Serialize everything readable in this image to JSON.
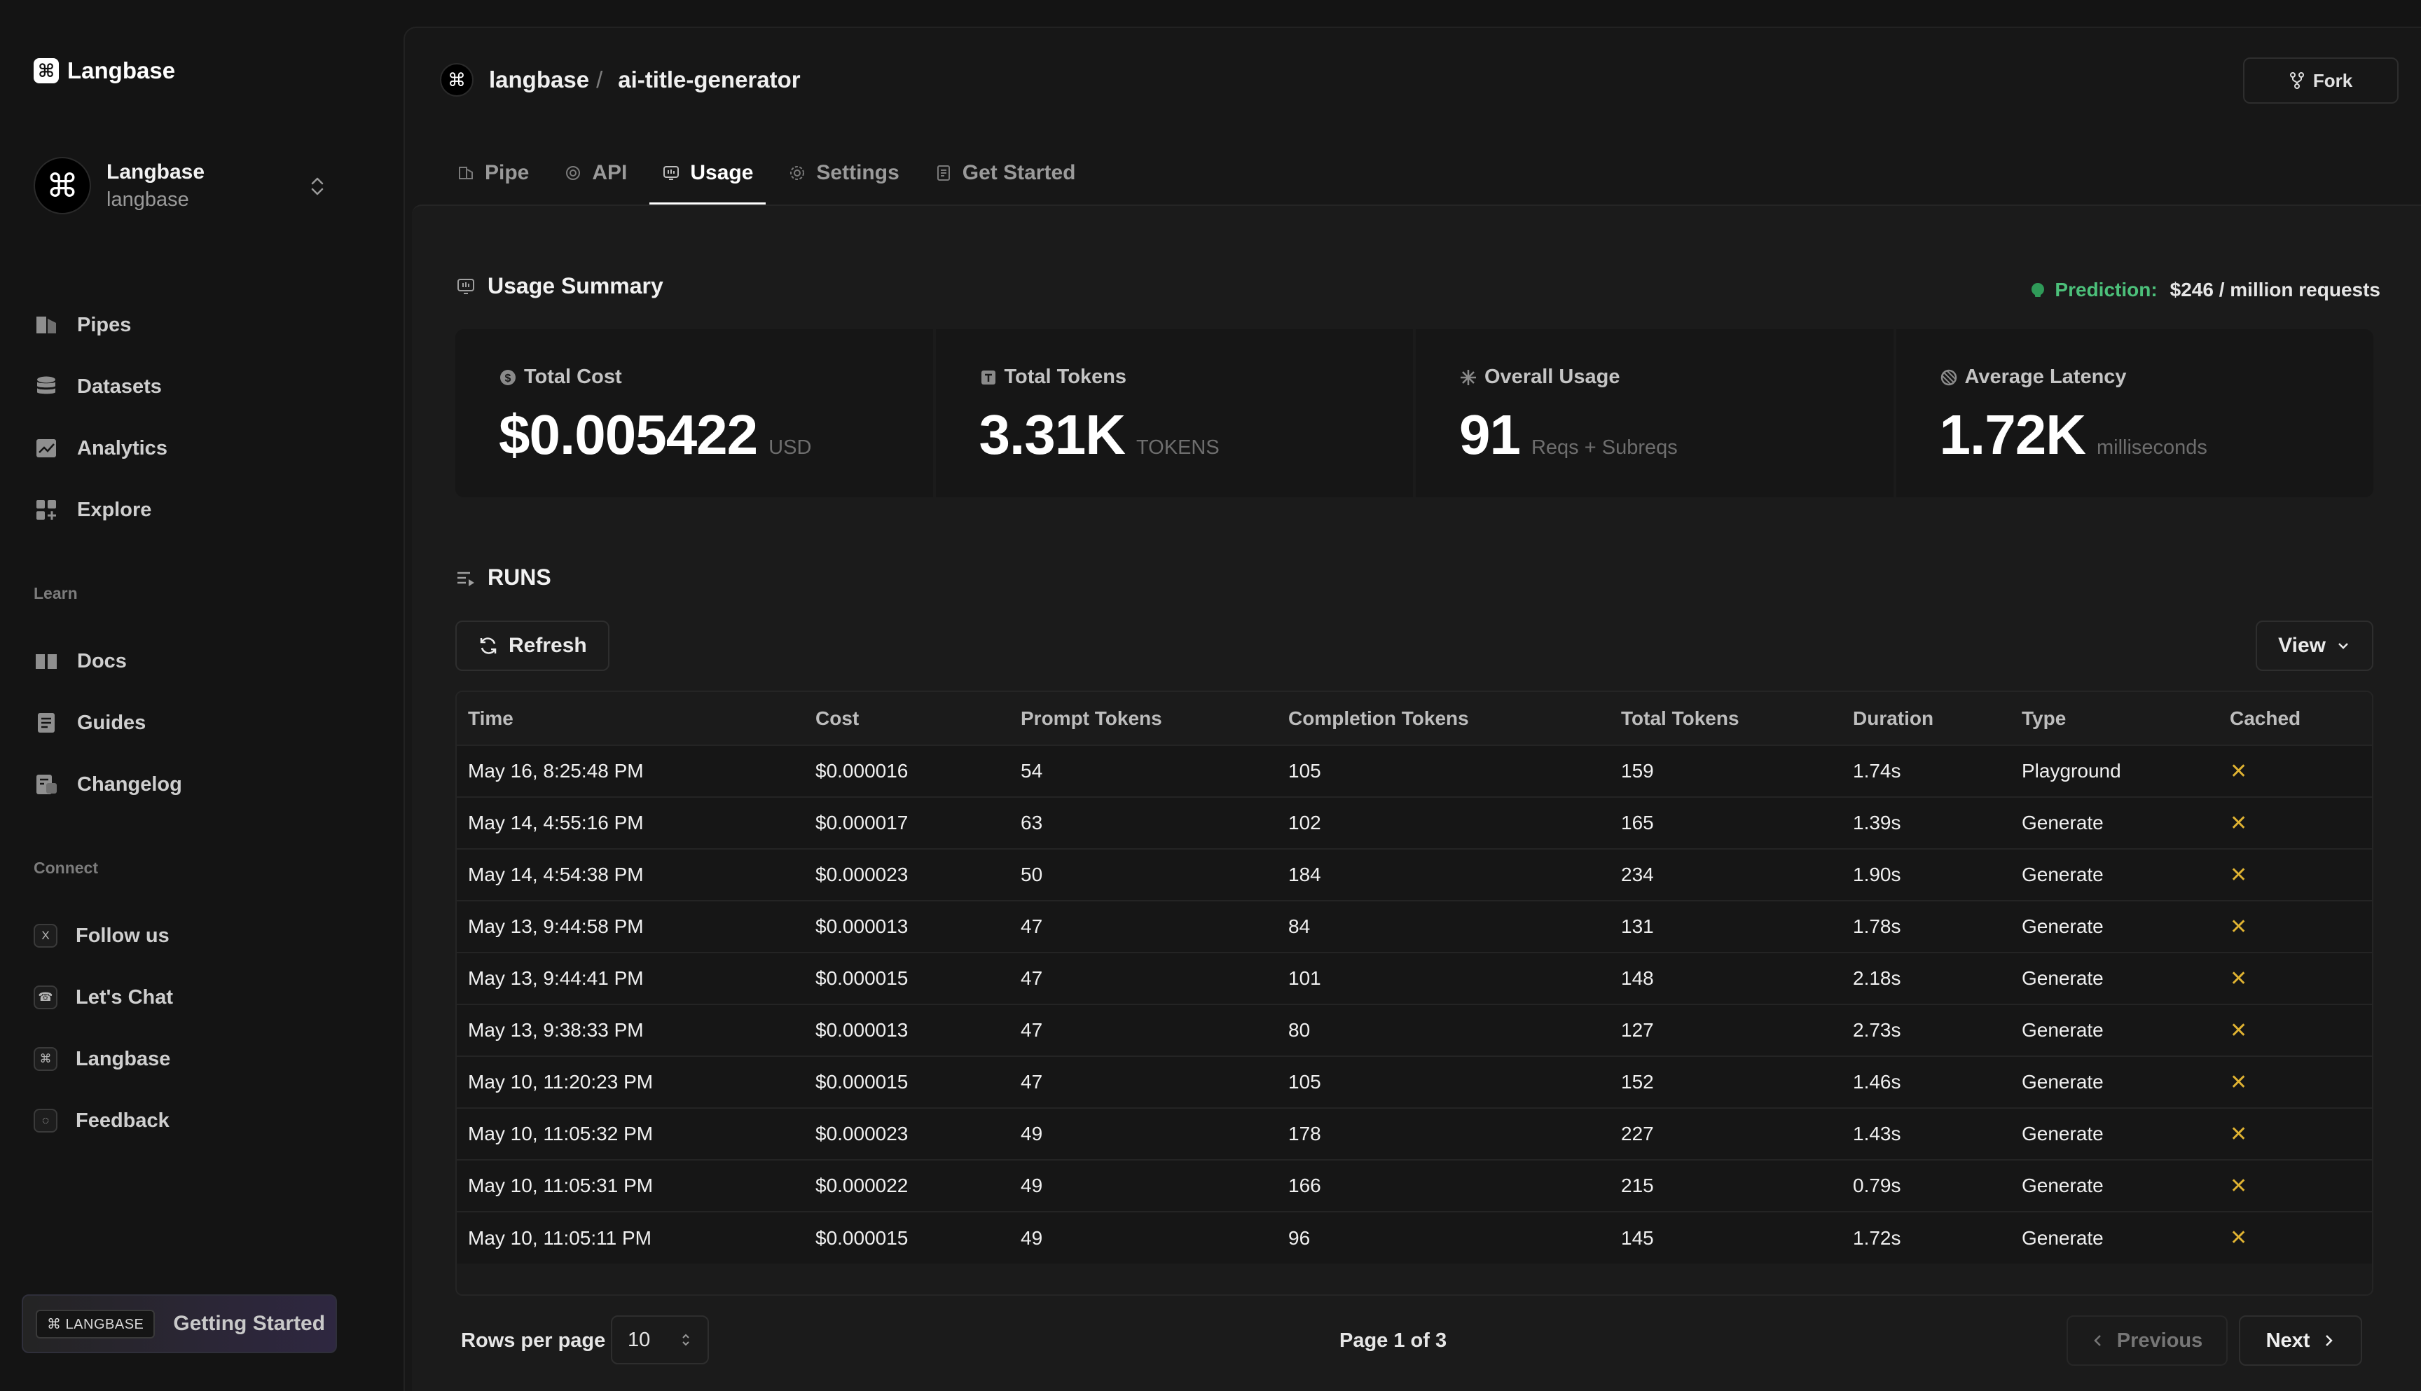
{
  "sidebar": {
    "brand": {
      "mark": "⌘",
      "name": "Langbase"
    },
    "org": {
      "avatar": "⌘",
      "name": "Langbase",
      "handle": "langbase"
    },
    "nav": [
      {
        "label": "Pipes",
        "icon": "pipes-icon"
      },
      {
        "label": "Datasets",
        "icon": "database-icon"
      },
      {
        "label": "Analytics",
        "icon": "analytics-icon"
      },
      {
        "label": "Explore",
        "icon": "explore-icon"
      }
    ],
    "learn_heading": "Learn",
    "learn": [
      {
        "label": "Docs",
        "icon": "book-icon"
      },
      {
        "label": "Guides",
        "icon": "guide-icon"
      },
      {
        "label": "Changelog",
        "icon": "changelog-icon"
      }
    ],
    "connect_heading": "Connect",
    "connect": [
      {
        "label": "Follow us",
        "glyph": "X",
        "icon": "x-icon"
      },
      {
        "label": "Let's Chat",
        "glyph": "☎",
        "icon": "chat-icon"
      },
      {
        "label": "Langbase",
        "glyph": "⌘",
        "icon": "langbase-icon"
      },
      {
        "label": "Feedback",
        "glyph": "◌",
        "icon": "feedback-icon"
      }
    ],
    "getting_started": {
      "badge": "⌘ LANGBASE",
      "label": "Getting Started"
    }
  },
  "header": {
    "mark": "⌘",
    "org": "langbase",
    "separator": "/",
    "pipe": "ai-title-generator",
    "fork_label": "Fork"
  },
  "tabs": [
    {
      "label": "Pipe",
      "icon": "pipe-tab-icon"
    },
    {
      "label": "API",
      "icon": "api-tab-icon"
    },
    {
      "label": "Usage",
      "icon": "usage-tab-icon",
      "active": true
    },
    {
      "label": "Settings",
      "icon": "settings-tab-icon"
    },
    {
      "label": "Get Started",
      "icon": "get-started-tab-icon"
    }
  ],
  "usage_summary": {
    "title": "Usage Summary",
    "prediction_label": "Prediction:",
    "prediction_value": "$246 / million requests",
    "stats": [
      {
        "label": "Total Cost",
        "value": "$0.005422",
        "unit": "USD",
        "icon": "dollar-icon"
      },
      {
        "label": "Total Tokens",
        "value": "3.31K",
        "unit": "TOKENS",
        "icon": "tokens-icon"
      },
      {
        "label": "Overall Usage",
        "value": "91",
        "unit": "Reqs + Subreqs",
        "icon": "sparkle-icon"
      },
      {
        "label": "Average Latency",
        "value": "1.72K",
        "unit": "milliseconds",
        "icon": "latency-icon"
      }
    ]
  },
  "runs": {
    "title": "RUNS",
    "refresh_label": "Refresh",
    "view_label": "View",
    "columns": [
      "Time",
      "Cost",
      "Prompt Tokens",
      "Completion Tokens",
      "Total Tokens",
      "Duration",
      "Type",
      "Cached"
    ],
    "rows": [
      [
        "May 16, 8:25:48 PM",
        "$0.000016",
        "54",
        "105",
        "159",
        "1.74s",
        "Playground",
        "✕"
      ],
      [
        "May 14, 4:55:16 PM",
        "$0.000017",
        "63",
        "102",
        "165",
        "1.39s",
        "Generate",
        "✕"
      ],
      [
        "May 14, 4:54:38 PM",
        "$0.000023",
        "50",
        "184",
        "234",
        "1.90s",
        "Generate",
        "✕"
      ],
      [
        "May 13, 9:44:58 PM",
        "$0.000013",
        "47",
        "84",
        "131",
        "1.78s",
        "Generate",
        "✕"
      ],
      [
        "May 13, 9:44:41 PM",
        "$0.000015",
        "47",
        "101",
        "148",
        "2.18s",
        "Generate",
        "✕"
      ],
      [
        "May 13, 9:38:33 PM",
        "$0.000013",
        "47",
        "80",
        "127",
        "2.73s",
        "Generate",
        "✕"
      ],
      [
        "May 10, 11:20:23 PM",
        "$0.000015",
        "47",
        "105",
        "152",
        "1.46s",
        "Generate",
        "✕"
      ],
      [
        "May 10, 11:05:32 PM",
        "$0.000023",
        "49",
        "178",
        "227",
        "1.43s",
        "Generate",
        "✕"
      ],
      [
        "May 10, 11:05:31 PM",
        "$0.000022",
        "49",
        "166",
        "215",
        "0.79s",
        "Generate",
        "✕"
      ],
      [
        "May 10, 11:05:11 PM",
        "$0.000015",
        "49",
        "96",
        "145",
        "1.72s",
        "Generate",
        "✕"
      ]
    ],
    "pagination": {
      "rows_label": "Rows per page",
      "rows_value": "10",
      "page_info": "Page 1 of 3",
      "previous_label": "Previous",
      "next_label": "Next"
    }
  },
  "colors": {
    "background": "#141414",
    "panel": "#171717",
    "accent_green": "#4cc07a",
    "cross_yellow": "#e0b332"
  }
}
